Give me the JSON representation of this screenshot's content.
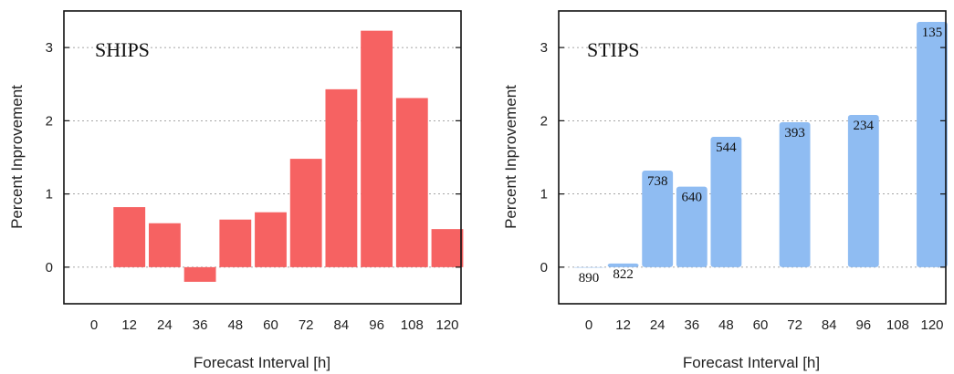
{
  "chart_data": [
    {
      "type": "bar",
      "panel_label": "SHIPS",
      "xlabel": "Forecast Interval [h]",
      "ylabel": "Percent Inprovement",
      "categories": [
        "0",
        "12",
        "24",
        "36",
        "48",
        "60",
        "72",
        "84",
        "96",
        "108",
        "120"
      ],
      "values": [
        null,
        0.82,
        0.6,
        -0.2,
        0.65,
        0.75,
        1.48,
        2.43,
        3.23,
        2.31,
        0.52
      ],
      "yticks": [
        "0",
        "1",
        "2",
        "3"
      ],
      "ylim": [
        -0.5,
        3.5
      ],
      "grid": "horizontal dotted",
      "bar_color": "#f66262"
    },
    {
      "type": "bar",
      "panel_label": "STIPS",
      "xlabel": "Forecast Interval [h]",
      "ylabel": "Percent Inprovement",
      "categories": [
        "0",
        "12",
        "24",
        "36",
        "48",
        "60",
        "72",
        "84",
        "96",
        "108",
        "120"
      ],
      "values": [
        0,
        0.05,
        1.32,
        1.1,
        1.78,
        null,
        1.98,
        null,
        2.08,
        null,
        3.35
      ],
      "data_labels": [
        "890",
        "822",
        "738",
        "640",
        "544",
        "",
        "393",
        "",
        "234",
        "",
        "135"
      ],
      "yticks": [
        "0",
        "1",
        "2",
        "3"
      ],
      "ylim": [
        -0.5,
        3.5
      ],
      "grid": "horizontal dotted",
      "bar_color": "#8fbcf2"
    }
  ]
}
